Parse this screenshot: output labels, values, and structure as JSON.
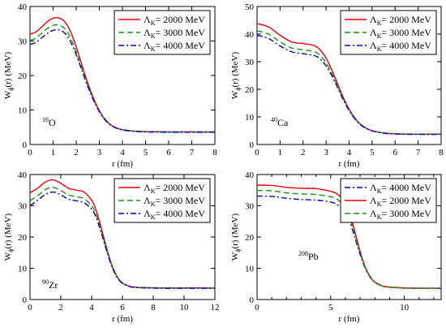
{
  "figure": {
    "line_styles": {
      "2000": {
        "color": "#e8000b",
        "dash": ""
      },
      "3000": {
        "color": "#149414",
        "dash": "7,4"
      },
      "4000": {
        "color": "#0000cc",
        "dash": "7,3,2,3"
      }
    }
  },
  "chart_data": [
    {
      "type": "line",
      "nucleus_label": {
        "sup": "16",
        "sym": "O"
      },
      "xlabel": "r (fm)",
      "ylabel": {
        "main": "W",
        "sub": "ϕ",
        "rest": "(r) (MeV)"
      },
      "xlim": [
        0,
        8
      ],
      "ylim": [
        0,
        40
      ],
      "xticks": [
        0,
        1,
        2,
        3,
        4,
        5,
        6,
        7,
        8
      ],
      "yticks": [
        0,
        10,
        20,
        30,
        40
      ],
      "legend": {
        "placement": "top-right",
        "order": [
          "2000",
          "3000",
          "4000"
        ]
      },
      "x": [
        0,
        0.25,
        0.5,
        0.75,
        1.0,
        1.25,
        1.5,
        1.75,
        2.0,
        2.25,
        2.5,
        2.75,
        3.0,
        3.25,
        3.5,
        3.75,
        4.0,
        4.5,
        5.0,
        5.5,
        6.0,
        6.5,
        7.0,
        7.5,
        8.0
      ],
      "series": [
        {
          "key": "2000",
          "name": "Λ",
          "name_sub": "K",
          "name_rest": "= 2000 MeV",
          "values": [
            32.0,
            32.6,
            34.0,
            35.6,
            36.6,
            36.7,
            35.6,
            32.8,
            28.3,
            23.0,
            17.8,
            13.4,
            9.8,
            7.3,
            5.7,
            4.8,
            4.3,
            3.9,
            3.75,
            3.7,
            3.65,
            3.65,
            3.65,
            3.65,
            3.65
          ]
        },
        {
          "key": "3000",
          "name": "Λ",
          "name_sub": "K",
          "name_rest": "= 3000 MeV",
          "values": [
            30.2,
            30.8,
            32.2,
            33.6,
            34.5,
            34.6,
            33.6,
            31.0,
            26.9,
            22.0,
            17.2,
            13.0,
            9.6,
            7.2,
            5.6,
            4.75,
            4.25,
            3.85,
            3.7,
            3.65,
            3.6,
            3.6,
            3.6,
            3.6,
            3.6
          ]
        },
        {
          "key": "4000",
          "name": "Λ",
          "name_sub": "K",
          "name_rest": "= 4000 MeV",
          "values": [
            29.0,
            29.6,
            30.9,
            32.2,
            33.1,
            33.2,
            32.3,
            29.8,
            26.0,
            21.4,
            16.8,
            12.8,
            9.5,
            7.1,
            5.55,
            4.7,
            4.2,
            3.8,
            3.65,
            3.6,
            3.55,
            3.55,
            3.55,
            3.55,
            3.55
          ]
        }
      ]
    },
    {
      "type": "line",
      "nucleus_label": {
        "sup": "40",
        "sym": "Ca"
      },
      "xlabel": "r (fm)",
      "ylabel": {
        "main": "W",
        "sub": "ϕ",
        "rest": "(r) (MeV)"
      },
      "xlim": [
        0,
        8
      ],
      "ylim": [
        0,
        50
      ],
      "xticks": [
        0,
        1,
        2,
        3,
        4,
        5,
        6,
        7,
        8
      ],
      "yticks": [
        0,
        10,
        20,
        30,
        40,
        50
      ],
      "legend": {
        "placement": "top-right",
        "order": [
          "2000",
          "3000",
          "4000"
        ]
      },
      "x": [
        0,
        0.5,
        1.0,
        1.5,
        2.0,
        2.5,
        2.75,
        3.0,
        3.25,
        3.5,
        3.75,
        4.0,
        4.25,
        4.5,
        4.75,
        5.0,
        5.5,
        6.0,
        6.5,
        7.0,
        7.5,
        8.0
      ],
      "series": [
        {
          "key": "2000",
          "name": "Λ",
          "name_sub": "K",
          "name_rest": "= 2000 MeV",
          "values": [
            43.8,
            42.6,
            39.6,
            37.2,
            36.6,
            35.8,
            34.2,
            31.3,
            27.0,
            22.0,
            17.0,
            12.8,
            9.6,
            7.3,
            5.9,
            5.0,
            4.2,
            3.9,
            3.8,
            3.75,
            3.75,
            3.75
          ]
        },
        {
          "key": "3000",
          "name": "Λ",
          "name_sub": "K",
          "name_rest": "= 3000 MeV",
          "values": [
            41.2,
            40.0,
            37.2,
            35.0,
            34.3,
            33.6,
            32.2,
            29.6,
            25.8,
            21.2,
            16.5,
            12.5,
            9.4,
            7.2,
            5.8,
            4.95,
            4.15,
            3.85,
            3.75,
            3.7,
            3.7,
            3.7
          ]
        },
        {
          "key": "4000",
          "name": "Λ",
          "name_sub": "K",
          "name_rest": "= 4000 MeV",
          "values": [
            39.6,
            38.4,
            35.7,
            33.6,
            32.9,
            32.2,
            30.9,
            28.5,
            24.9,
            20.6,
            16.1,
            12.3,
            9.3,
            7.1,
            5.75,
            4.9,
            4.1,
            3.8,
            3.7,
            3.65,
            3.65,
            3.65
          ]
        }
      ]
    },
    {
      "type": "line",
      "nucleus_label": {
        "sup": "90",
        "sym": "Zr"
      },
      "xlabel": "r (fm)",
      "ylabel": {
        "main": "W",
        "sub": "ϕ",
        "rest": "(r) (MeV)"
      },
      "xlim": [
        0,
        12
      ],
      "ylim": [
        0,
        40
      ],
      "xticks": [
        0,
        2,
        4,
        6,
        8,
        10,
        12
      ],
      "yticks": [
        0,
        10,
        20,
        30,
        40
      ],
      "legend": {
        "placement": "top-right",
        "order": [
          "2000",
          "3000",
          "4000"
        ]
      },
      "x": [
        0,
        0.5,
        1.0,
        1.5,
        2.0,
        2.5,
        3.0,
        3.5,
        4.0,
        4.25,
        4.5,
        4.75,
        5.0,
        5.25,
        5.5,
        5.75,
        6.0,
        6.5,
        7.0,
        8.0,
        9.0,
        10.0,
        11.0,
        12.0
      ],
      "series": [
        {
          "key": "2000",
          "name": "Λ",
          "name_sub": "K",
          "name_rest": "= 2000 MeV",
          "values": [
            34.2,
            35.6,
            37.6,
            38.3,
            37.2,
            35.6,
            35.0,
            34.4,
            31.8,
            29.2,
            25.2,
            20.6,
            16.0,
            11.9,
            8.8,
            6.6,
            5.3,
            4.2,
            3.9,
            3.75,
            3.7,
            3.7,
            3.7,
            3.7
          ]
        },
        {
          "key": "3000",
          "name": "Λ",
          "name_sub": "K",
          "name_rest": "= 3000 MeV",
          "values": [
            31.6,
            33.2,
            35.2,
            35.9,
            34.9,
            33.5,
            32.9,
            32.3,
            30.0,
            27.7,
            24.0,
            19.8,
            15.5,
            11.6,
            8.6,
            6.5,
            5.25,
            4.15,
            3.85,
            3.7,
            3.65,
            3.65,
            3.65,
            3.65
          ]
        },
        {
          "key": "4000",
          "name": "Λ",
          "name_sub": "K",
          "name_rest": "= 4000 MeV",
          "values": [
            30.0,
            31.8,
            33.6,
            34.4,
            33.5,
            32.1,
            31.6,
            31.0,
            28.9,
            26.8,
            23.3,
            19.3,
            15.2,
            11.4,
            8.5,
            6.45,
            5.2,
            4.1,
            3.8,
            3.65,
            3.6,
            3.6,
            3.6,
            3.6
          ]
        }
      ]
    },
    {
      "type": "line",
      "nucleus_label": {
        "sup": "208",
        "sym": "Pb"
      },
      "xlabel": "r (fm)",
      "ylabel": {
        "main": "W",
        "sub": "ϕ",
        "rest": "(r) (MeV)"
      },
      "xlim": [
        0,
        12.5
      ],
      "ylim": [
        0,
        40
      ],
      "xticks": [
        0,
        5,
        10
      ],
      "minor_xticks": [
        1,
        2,
        3,
        4,
        6,
        7,
        8,
        9,
        11,
        12
      ],
      "yticks": [
        0,
        10,
        20,
        30,
        40
      ],
      "legend": {
        "placement": "top-right",
        "order": [
          "4000",
          "2000",
          "3000"
        ]
      },
      "x": [
        0,
        1.0,
        2.0,
        3.0,
        4.0,
        5.0,
        5.5,
        6.0,
        6.25,
        6.5,
        6.75,
        7.0,
        7.25,
        7.5,
        7.75,
        8.0,
        8.5,
        9.0,
        10.0,
        11.0,
        12.0,
        12.5
      ],
      "series": [
        {
          "key": "4000",
          "name": "Λ",
          "name_sub": "K",
          "name_rest": "= 4000 MeV",
          "values": [
            33.1,
            33.0,
            32.4,
            32.0,
            31.8,
            31.2,
            30.2,
            27.8,
            25.4,
            22.0,
            18.2,
            14.4,
            11.1,
            8.5,
            6.7,
            5.5,
            4.3,
            3.9,
            3.65,
            3.6,
            3.6,
            3.6
          ]
        },
        {
          "key": "2000",
          "name": "Λ",
          "name_sub": "K",
          "name_rest": "= 2000 MeV",
          "values": [
            36.6,
            36.5,
            35.9,
            35.6,
            35.5,
            34.6,
            33.6,
            30.9,
            28.1,
            24.2,
            19.8,
            15.4,
            11.7,
            8.8,
            6.9,
            5.6,
            4.4,
            4.0,
            3.7,
            3.65,
            3.65,
            3.65
          ]
        },
        {
          "key": "3000",
          "name": "Λ",
          "name_sub": "K",
          "name_rest": "= 3000 MeV",
          "values": [
            34.9,
            34.8,
            34.1,
            33.8,
            33.6,
            32.9,
            31.9,
            29.4,
            26.8,
            23.1,
            19.0,
            14.9,
            11.4,
            8.65,
            6.8,
            5.55,
            4.35,
            3.95,
            3.7,
            3.6,
            3.6,
            3.6
          ]
        }
      ]
    }
  ]
}
